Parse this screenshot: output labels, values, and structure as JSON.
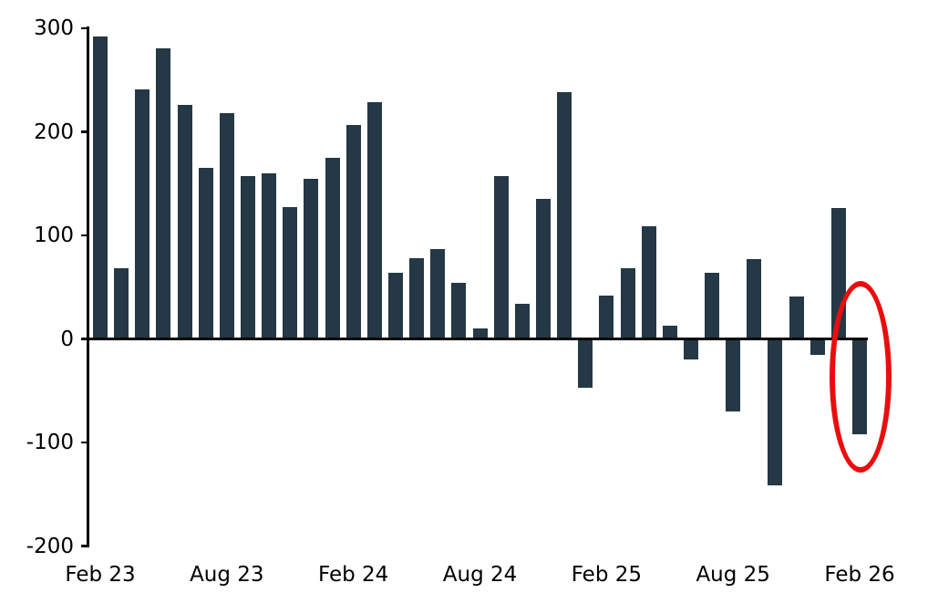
{
  "chart_data": {
    "type": "bar",
    "title": "",
    "xlabel": "",
    "ylabel": "",
    "ylim": [
      -200,
      300
    ],
    "grid": false,
    "legend": "none",
    "background": "#ffffff",
    "bar_color": "#243845",
    "axis_color": "#000000",
    "categories": [
      "Feb 23",
      "Mar 23",
      "Apr 23",
      "May 23",
      "Jun 23",
      "Jul 23",
      "Aug 23",
      "Sep 23",
      "Oct 23",
      "Nov 23",
      "Dec 23",
      "Jan 24",
      "Feb 24",
      "Mar 24",
      "Apr 24",
      "May 24",
      "Jun 24",
      "Jul 24",
      "Aug 24",
      "Sep 24",
      "Oct 24",
      "Nov 24",
      "Dec 24",
      "Jan 25",
      "Feb 25",
      "Mar 25",
      "Apr 25",
      "May 25",
      "Jun 25",
      "Jul 25",
      "Aug 25",
      "Sep 25",
      "Oct 25",
      "Nov 25",
      "Dec 25",
      "Jan 26",
      "Feb 26"
    ],
    "values": [
      292,
      68,
      241,
      281,
      226,
      165,
      218,
      157,
      160,
      127,
      155,
      175,
      207,
      229,
      64,
      78,
      87,
      54,
      10,
      157,
      34,
      135,
      238,
      -47,
      42,
      68,
      109,
      13,
      -20,
      64,
      -70,
      77,
      -141,
      41,
      -15,
      126,
      -92
    ],
    "y_ticks": [
      300,
      200,
      100,
      0,
      -100,
      -200
    ],
    "x_tick_labels": [
      "Feb 23",
      "Aug 23",
      "Feb 24",
      "Aug 24",
      "Feb 25",
      "Aug 25",
      "Feb 26"
    ],
    "x_tick_month_indices": [
      0,
      6,
      12,
      18,
      24,
      30,
      36
    ],
    "annotation": {
      "shape": "ellipse",
      "color": "#e90e0e",
      "highlighted_category": "Feb 26",
      "highlighted_value": -92,
      "month_index": 36
    }
  }
}
